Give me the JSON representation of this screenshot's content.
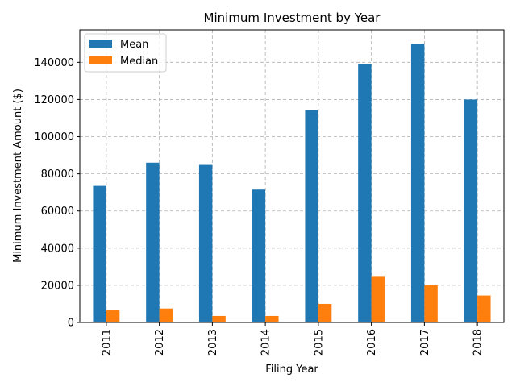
{
  "chart_data": {
    "type": "bar",
    "title": "Minimum Investment by Year",
    "xlabel": "Filing Year",
    "ylabel": "Minimum Investment Amount ($)",
    "categories": [
      "2011",
      "2012",
      "2013",
      "2014",
      "2015",
      "2016",
      "2017",
      "2018"
    ],
    "series": [
      {
        "name": "Mean",
        "color": "#1f77b4",
        "values": [
          73500,
          86000,
          84800,
          71500,
          114500,
          139200,
          150000,
          120000
        ]
      },
      {
        "name": "Median",
        "color": "#ff7f0e",
        "values": [
          6500,
          7500,
          3500,
          3500,
          10000,
          25000,
          20000,
          14500
        ]
      }
    ],
    "ylim": [
      0,
      157500
    ],
    "yticks": [
      0,
      20000,
      40000,
      60000,
      80000,
      100000,
      120000,
      140000
    ],
    "grid": true,
    "legend_position": "top-left"
  }
}
